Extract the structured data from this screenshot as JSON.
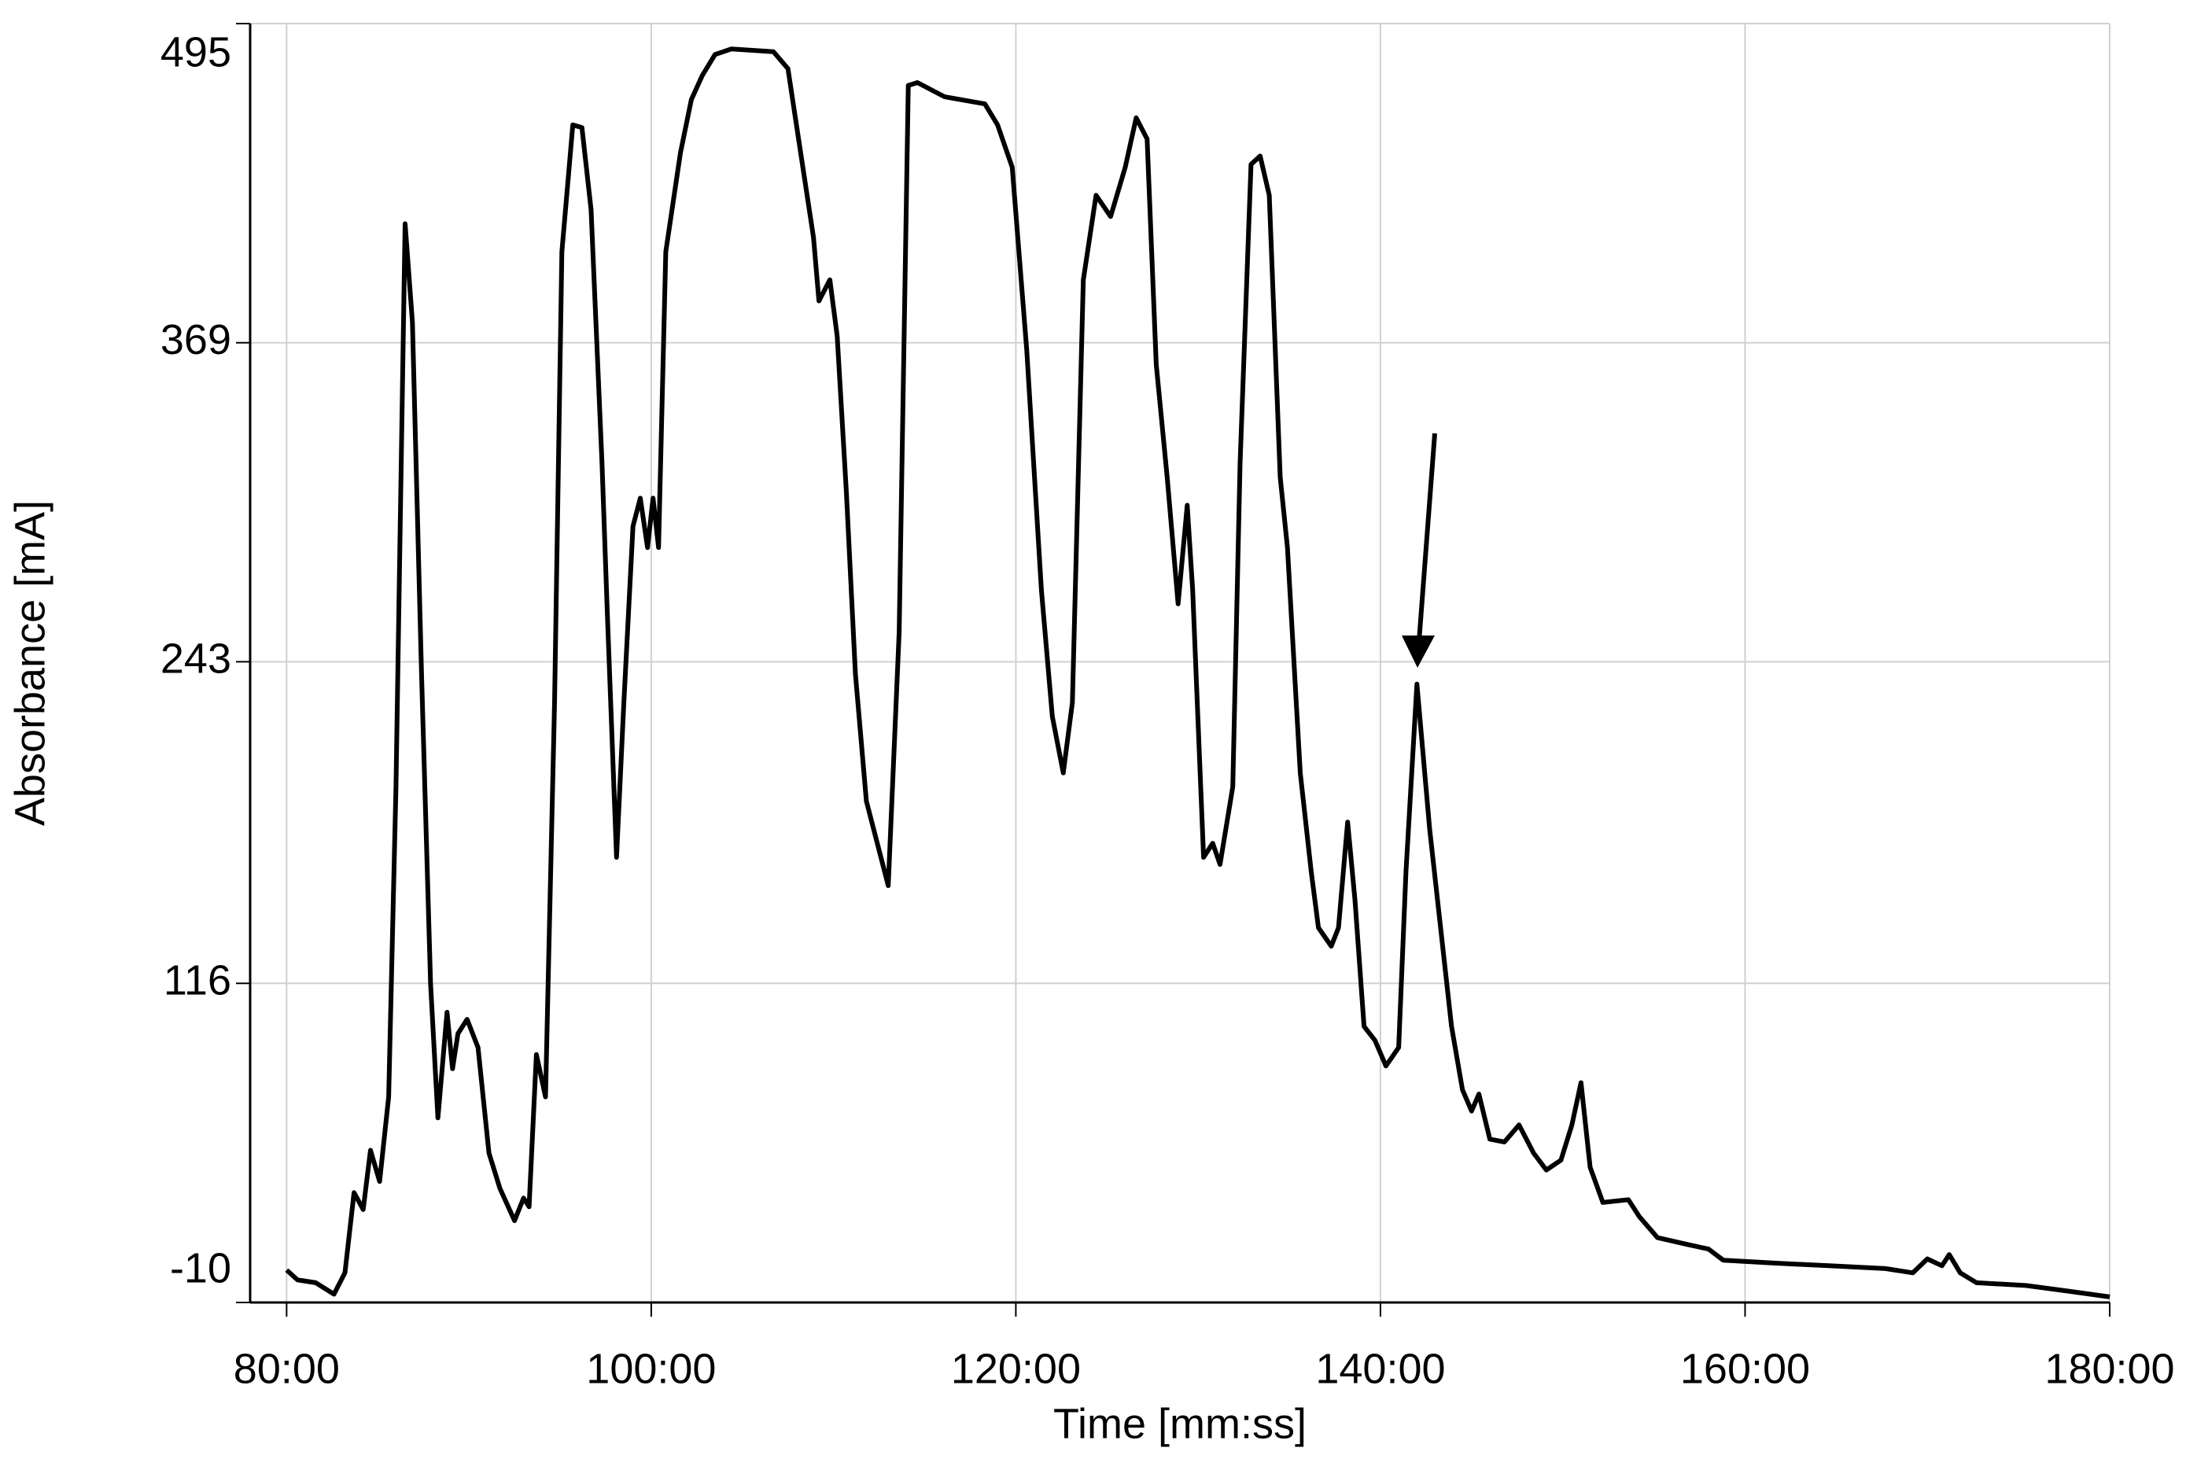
{
  "chart_data": {
    "type": "line",
    "x_label": "Time [mm:ss]",
    "y_label": "Absorbance [mA]",
    "xlim": [
      78,
      180
    ],
    "xticks": [
      {
        "value": 80,
        "label": "80:00"
      },
      {
        "value": 100,
        "label": "100:00"
      },
      {
        "value": 120,
        "label": "120:00"
      },
      {
        "value": 140,
        "label": "140:00"
      },
      {
        "value": 160,
        "label": "160:00"
      },
      {
        "value": 180,
        "label": "180:00"
      }
    ],
    "ylim": [
      -10,
      495
    ],
    "yticks": [
      -10,
      116,
      243,
      369,
      495
    ],
    "grid": true,
    "series": [
      {
        "color": "#000000",
        "x": [
          80.0,
          80.6,
          81.6,
          82.6,
          83.2,
          83.7,
          84.2,
          84.6,
          85.1,
          85.6,
          86.0,
          86.5,
          86.9,
          87.4,
          87.9,
          88.3,
          88.8,
          89.1,
          89.4,
          89.9,
          90.5,
          91.1,
          91.7,
          92.5,
          93.0,
          93.3,
          93.7,
          94.2,
          94.7,
          95.1,
          95.7,
          96.2,
          96.7,
          97.3,
          97.6,
          98.1,
          98.5,
          99.0,
          99.4,
          99.8,
          100.1,
          100.4,
          100.8,
          101.6,
          102.2,
          102.8,
          103.5,
          104.4,
          106.7,
          107.5,
          108.2,
          108.9,
          109.2,
          109.8,
          110.2,
          110.7,
          111.2,
          111.8,
          112.4,
          113.0,
          113.6,
          114.1,
          114.6,
          116.1,
          118.3,
          119.0,
          119.8,
          120.6,
          121.4,
          122.0,
          122.6,
          123.1,
          123.7,
          124.4,
          125.2,
          126.0,
          126.6,
          127.2,
          127.7,
          128.3,
          128.9,
          129.4,
          129.7,
          130.3,
          130.8,
          131.2,
          131.9,
          132.3,
          132.9,
          133.4,
          133.9,
          134.5,
          134.9,
          135.6,
          136.2,
          136.6,
          137.3,
          137.7,
          138.2,
          138.6,
          139.1,
          139.7,
          140.3,
          141.0,
          141.4,
          142.0,
          142.7,
          143.3,
          143.9,
          144.5,
          145.0,
          145.4,
          146.0,
          146.8,
          147.6,
          148.4,
          149.1,
          149.9,
          150.5,
          151.0,
          151.5,
          152.2,
          153.6,
          154.2,
          155.2,
          156.9,
          158.0,
          158.8,
          161.5,
          164.6,
          167.7,
          169.2,
          170.0,
          170.8,
          171.2,
          171.8,
          172.7,
          175.4,
          177.7,
          180.0
        ],
        "values": [
          2.8,
          -1.1,
          -2.2,
          -6.7,
          1.7,
          33.4,
          26.7,
          50.1,
          37.8,
          71.2,
          193.6,
          416.0,
          377.1,
          238.1,
          115.7,
          62.9,
          104.6,
          82.3,
          96.2,
          101.8,
          90.7,
          49.0,
          35.1,
          22.3,
          31.2,
          27.8,
          87.9,
          71.2,
          226.9,
          404.9,
          455.0,
          453.9,
          421.6,
          321.5,
          260.3,
          165.8,
          226.9,
          296.5,
          307.6,
          288.1,
          307.6,
          288.1,
          404.9,
          443.9,
          465.0,
          474.5,
          482.8,
          485.0,
          483.9,
          477.2,
          443.9,
          410.5,
          385.5,
          393.8,
          371.6,
          310.4,
          238.1,
          188.0,
          171.3,
          154.6,
          254.8,
          470.6,
          471.7,
          466.1,
          463.3,
          455.0,
          438.3,
          366.0,
          271.4,
          221.4,
          199.1,
          226.9,
          393.8,
          427.2,
          418.8,
          438.3,
          457.8,
          449.4,
          360.4,
          315.9,
          265.9,
          304.8,
          271.4,
          165.8,
          171.3,
          163.0,
          193.6,
          321.5,
          439.4,
          442.7,
          427.2,
          315.9,
          288.1,
          199.1,
          160.2,
          138.0,
          130.7,
          138.0,
          179.7,
          149.1,
          99.0,
          93.5,
          83.4,
          90.7,
          160.2,
          234.2,
          176.9,
          138.0,
          99.0,
          74.0,
          65.6,
          72.3,
          54.5,
          53.4,
          60.1,
          49.0,
          42.3,
          46.2,
          60.1,
          76.8,
          43.4,
          29.5,
          30.6,
          23.9,
          15.6,
          12.8,
          11.1,
          6.7,
          5.6,
          4.5,
          3.4,
          1.7,
          7.2,
          4.5,
          8.9,
          1.7,
          -2.2,
          -3.3,
          -5.5,
          -7.8
        ]
      }
    ]
  }
}
